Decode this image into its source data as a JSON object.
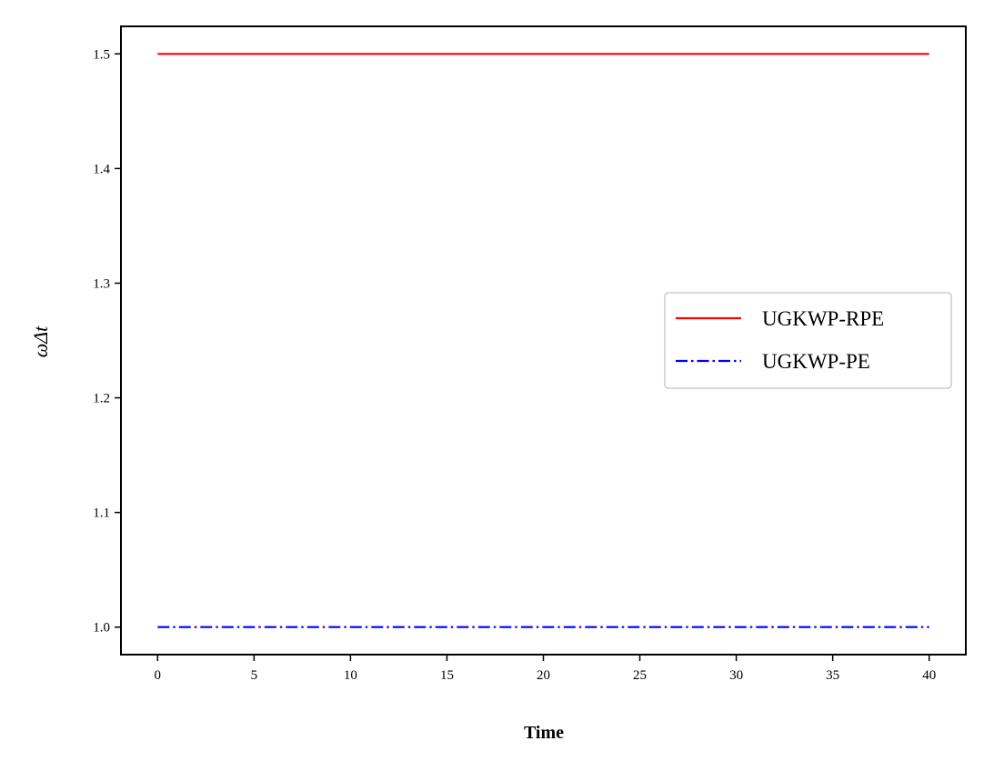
{
  "chart_data": {
    "type": "line",
    "title": "",
    "xlabel": "Time",
    "ylabel": "ωΔt",
    "xlim": [
      -1.9,
      41.9
    ],
    "ylim": [
      0.976,
      1.524
    ],
    "xticks": [
      0,
      5,
      10,
      15,
      20,
      25,
      30,
      35,
      40
    ],
    "xtick_labels": [
      "0",
      "5",
      "10",
      "15",
      "20",
      "25",
      "30",
      "35",
      "40"
    ],
    "yticks": [
      1.0,
      1.1,
      1.2,
      1.3,
      1.4,
      1.5
    ],
    "ytick_labels": [
      "1.0",
      "1.1",
      "1.2",
      "1.3",
      "1.4",
      "1.5"
    ],
    "grid": false,
    "legend_position": "center-right",
    "series": [
      {
        "name": "UGKWP-RPE",
        "color": "#ff0000",
        "style": "solid",
        "x": [
          0,
          40
        ],
        "y": [
          1.5,
          1.5
        ]
      },
      {
        "name": "UGKWP-PE",
        "color": "#0000ff",
        "style": "dashdot",
        "x": [
          0,
          40
        ],
        "y": [
          1.0,
          1.0
        ]
      }
    ]
  }
}
